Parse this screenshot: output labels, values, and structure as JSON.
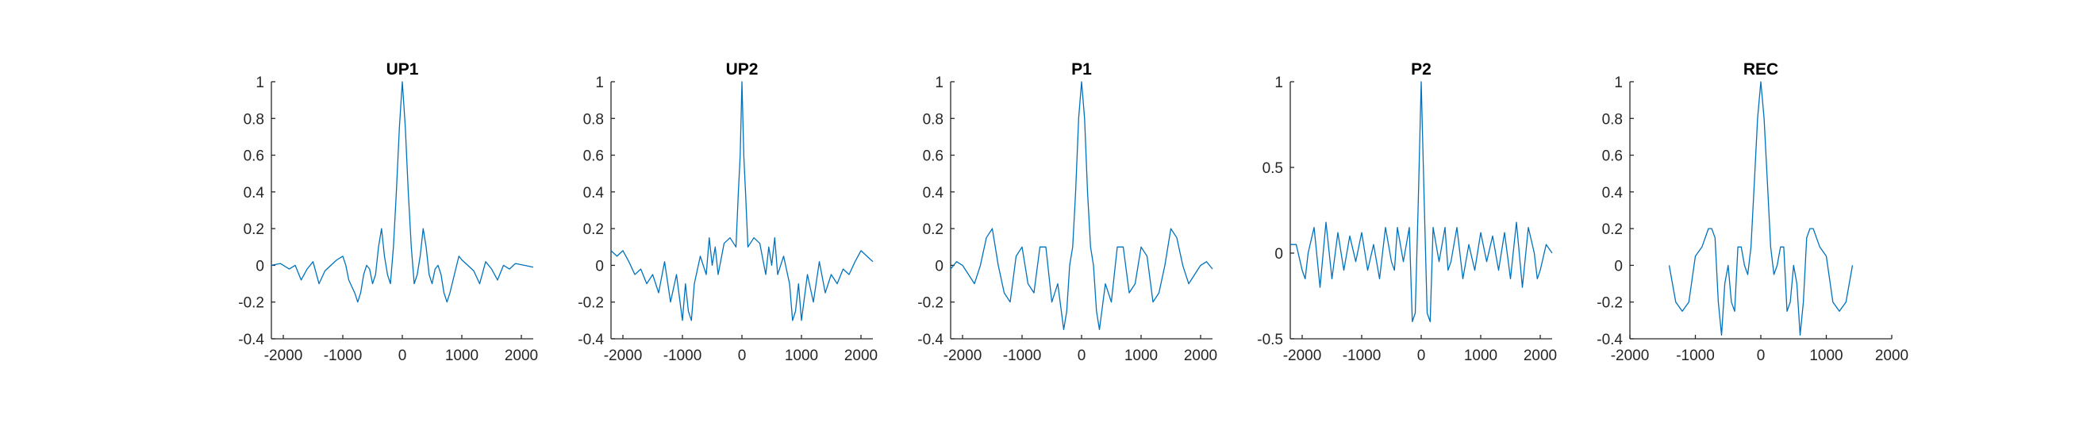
{
  "colors": {
    "series": "#0072BD",
    "axis": "#262626",
    "background": "#ffffff"
  },
  "chart_data": [
    {
      "type": "line",
      "title": "UP1",
      "xlim": [
        -2200,
        2200
      ],
      "ylim": [
        -0.4,
        1
      ],
      "xticks": [
        -2000,
        -1000,
        0,
        1000,
        2000
      ],
      "yticks": [
        -0.4,
        -0.2,
        0,
        0.2,
        0.4,
        0.6,
        0.8,
        1
      ],
      "xticklabels": [
        "-2000",
        "-1000",
        "0",
        "1000",
        "2000"
      ],
      "yticklabels": [
        "-0.4",
        "-0.2",
        "0",
        "0.2",
        "0.4",
        "0.6",
        "0.8",
        "1"
      ],
      "grid": false,
      "series": [
        {
          "x": [
            -2200,
            -2050,
            -1900,
            -1800,
            -1700,
            -1600,
            -1500,
            -1400,
            -1300,
            -1200,
            -1100,
            -1000,
            -950,
            -900,
            -800,
            -750,
            -700,
            -650,
            -600,
            -550,
            -500,
            -450,
            -400,
            -350,
            -300,
            -250,
            -200,
            -150,
            -100,
            -50,
            0,
            50,
            100,
            150,
            200,
            250,
            300,
            350,
            400,
            450,
            500,
            550,
            600,
            650,
            700,
            750,
            800,
            950,
            1000,
            1100,
            1200,
            1300,
            1400,
            1500,
            1600,
            1700,
            1800,
            1900,
            2050,
            2200
          ],
          "y": [
            0.0,
            0.01,
            -0.02,
            0.0,
            -0.08,
            -0.02,
            0.02,
            -0.1,
            -0.03,
            0.0,
            0.03,
            0.05,
            0.0,
            -0.08,
            -0.15,
            -0.2,
            -0.15,
            -0.05,
            0.0,
            -0.02,
            -0.1,
            -0.05,
            0.1,
            0.2,
            0.05,
            -0.05,
            -0.1,
            0.1,
            0.4,
            0.75,
            1.0,
            0.75,
            0.4,
            0.1,
            -0.1,
            -0.05,
            0.05,
            0.2,
            0.1,
            -0.05,
            -0.1,
            -0.02,
            0.0,
            -0.05,
            -0.15,
            -0.2,
            -0.15,
            0.05,
            0.03,
            0.0,
            -0.03,
            -0.1,
            0.02,
            -0.02,
            -0.08,
            0.0,
            -0.02,
            0.01,
            0.0,
            -0.01
          ]
        }
      ]
    },
    {
      "type": "line",
      "title": "UP2",
      "xlim": [
        -2200,
        2200
      ],
      "ylim": [
        -0.4,
        1
      ],
      "xticks": [
        -2000,
        -1000,
        0,
        1000,
        2000
      ],
      "yticks": [
        -0.4,
        -0.2,
        0,
        0.2,
        0.4,
        0.6,
        0.8,
        1
      ],
      "xticklabels": [
        "-2000",
        "-1000",
        "0",
        "1000",
        "2000"
      ],
      "yticklabels": [
        "-0.4",
        "-0.2",
        "0",
        "0.2",
        "0.4",
        "0.6",
        "0.8",
        "1"
      ],
      "grid": false,
      "series": [
        {
          "x": [
            -2200,
            -2100,
            -2000,
            -1900,
            -1800,
            -1700,
            -1600,
            -1500,
            -1400,
            -1300,
            -1200,
            -1100,
            -1000,
            -950,
            -900,
            -850,
            -800,
            -700,
            -600,
            -550,
            -500,
            -450,
            -400,
            -300,
            -200,
            -100,
            -60,
            -30,
            0,
            30,
            60,
            100,
            200,
            300,
            400,
            450,
            500,
            550,
            600,
            700,
            800,
            850,
            900,
            950,
            1000,
            1100,
            1200,
            1300,
            1400,
            1500,
            1600,
            1700,
            1800,
            1900,
            2000,
            2100,
            2200
          ],
          "y": [
            0.08,
            0.05,
            0.08,
            0.02,
            -0.05,
            -0.02,
            -0.1,
            -0.05,
            -0.15,
            0.02,
            -0.2,
            -0.05,
            -0.3,
            -0.1,
            -0.25,
            -0.3,
            -0.1,
            0.05,
            -0.05,
            0.15,
            0.0,
            0.1,
            -0.05,
            0.12,
            0.15,
            0.1,
            0.4,
            0.6,
            1.0,
            0.6,
            0.4,
            0.1,
            0.15,
            0.12,
            -0.05,
            0.1,
            0.0,
            0.15,
            -0.05,
            0.05,
            -0.1,
            -0.3,
            -0.25,
            -0.1,
            -0.3,
            -0.05,
            -0.2,
            0.02,
            -0.15,
            -0.05,
            -0.1,
            -0.02,
            -0.05,
            0.02,
            0.08,
            0.05,
            0.02
          ]
        }
      ]
    },
    {
      "type": "line",
      "title": "P1",
      "xlim": [
        -2200,
        2200
      ],
      "ylim": [
        -0.4,
        1
      ],
      "xticks": [
        -2000,
        -1000,
        0,
        1000,
        2000
      ],
      "yticks": [
        -0.4,
        -0.2,
        0,
        0.2,
        0.4,
        0.6,
        0.8,
        1
      ],
      "xticklabels": [
        "-2000",
        "-1000",
        "0",
        "1000",
        "2000"
      ],
      "yticklabels": [
        "-0.4",
        "-0.2",
        "0",
        "0.2",
        "0.4",
        "0.6",
        "0.8",
        "1"
      ],
      "grid": false,
      "series": [
        {
          "x": [
            -2200,
            -2100,
            -2000,
            -1900,
            -1800,
            -1700,
            -1600,
            -1500,
            -1400,
            -1300,
            -1200,
            -1100,
            -1000,
            -900,
            -800,
            -700,
            -600,
            -500,
            -400,
            -300,
            -250,
            -200,
            -150,
            -100,
            -50,
            0,
            50,
            100,
            150,
            200,
            250,
            300,
            400,
            500,
            600,
            700,
            800,
            900,
            1000,
            1100,
            1200,
            1300,
            1400,
            1500,
            1600,
            1700,
            1800,
            1900,
            2000,
            2100,
            2200
          ],
          "y": [
            -0.02,
            0.02,
            0.0,
            -0.05,
            -0.1,
            0.0,
            0.15,
            0.2,
            0.0,
            -0.15,
            -0.2,
            0.05,
            0.1,
            -0.1,
            -0.15,
            0.1,
            0.1,
            -0.2,
            -0.1,
            -0.35,
            -0.25,
            0.0,
            0.1,
            0.4,
            0.8,
            1.0,
            0.8,
            0.4,
            0.1,
            0.0,
            -0.25,
            -0.35,
            -0.1,
            -0.2,
            0.1,
            0.1,
            -0.15,
            -0.1,
            0.1,
            0.05,
            -0.2,
            -0.15,
            0.0,
            0.2,
            0.15,
            0.0,
            -0.1,
            -0.05,
            0.0,
            0.02,
            -0.02
          ]
        }
      ]
    },
    {
      "type": "line",
      "title": "P2",
      "xlim": [
        -2200,
        2200
      ],
      "ylim": [
        -0.5,
        1
      ],
      "xticks": [
        -2000,
        -1000,
        0,
        1000,
        2000
      ],
      "yticks": [
        -0.5,
        0,
        0.5,
        1
      ],
      "xticklabels": [
        "-2000",
        "-1000",
        "0",
        "1000",
        "2000"
      ],
      "yticklabels": [
        "-0.5",
        "0",
        "0.5",
        "1"
      ],
      "grid": false,
      "series": [
        {
          "x": [
            -2200,
            -2100,
            -2000,
            -1950,
            -1900,
            -1800,
            -1700,
            -1600,
            -1500,
            -1400,
            -1300,
            -1200,
            -1100,
            -1000,
            -900,
            -800,
            -700,
            -600,
            -500,
            -450,
            -400,
            -300,
            -200,
            -150,
            -100,
            -50,
            0,
            50,
            100,
            150,
            200,
            300,
            400,
            450,
            500,
            600,
            700,
            800,
            900,
            1000,
            1100,
            1200,
            1300,
            1400,
            1500,
            1600,
            1700,
            1800,
            1900,
            1950,
            2000,
            2100,
            2200
          ],
          "y": [
            0.05,
            0.05,
            -0.1,
            -0.15,
            0.0,
            0.15,
            -0.2,
            0.18,
            -0.15,
            0.12,
            -0.1,
            0.1,
            -0.05,
            0.12,
            -0.1,
            0.05,
            -0.15,
            0.15,
            -0.05,
            -0.1,
            0.15,
            -0.05,
            0.15,
            -0.4,
            -0.35,
            0.3,
            1.0,
            0.3,
            -0.35,
            -0.4,
            0.15,
            -0.05,
            0.15,
            -0.1,
            -0.05,
            0.15,
            -0.15,
            0.05,
            -0.1,
            0.12,
            -0.05,
            0.1,
            -0.1,
            0.12,
            -0.15,
            0.18,
            -0.2,
            0.15,
            0.0,
            -0.15,
            -0.1,
            0.05,
            0.0
          ]
        }
      ]
    },
    {
      "type": "line",
      "title": "REC",
      "xlim": [
        -2000,
        2000
      ],
      "ylim": [
        -0.4,
        1
      ],
      "xticks": [
        -2000,
        -1000,
        0,
        1000,
        2000
      ],
      "yticks": [
        -0.4,
        -0.2,
        0,
        0.2,
        0.4,
        0.6,
        0.8,
        1
      ],
      "xticklabels": [
        "-2000",
        "-1000",
        "0",
        "1000",
        "2000"
      ],
      "yticklabels": [
        "-0.4",
        "-0.2",
        "0",
        "0.2",
        "0.4",
        "0.6",
        "0.8",
        "1"
      ],
      "grid": false,
      "series": [
        {
          "x": [
            -1400,
            -1300,
            -1200,
            -1100,
            -1000,
            -900,
            -800,
            -750,
            -700,
            -650,
            -600,
            -550,
            -500,
            -450,
            -400,
            -350,
            -300,
            -250,
            -200,
            -150,
            -100,
            -50,
            0,
            50,
            100,
            150,
            200,
            250,
            300,
            350,
            400,
            450,
            500,
            550,
            600,
            650,
            700,
            750,
            800,
            900,
            1000,
            1100,
            1200,
            1300,
            1400
          ],
          "y": [
            0.0,
            -0.2,
            -0.25,
            -0.2,
            0.05,
            0.1,
            0.2,
            0.2,
            0.15,
            -0.2,
            -0.38,
            -0.1,
            0.0,
            -0.2,
            -0.25,
            0.1,
            0.1,
            0.0,
            -0.05,
            0.1,
            0.45,
            0.8,
            1.0,
            0.8,
            0.45,
            0.1,
            -0.05,
            0.0,
            0.1,
            0.1,
            -0.25,
            -0.2,
            0.0,
            -0.1,
            -0.38,
            -0.2,
            0.15,
            0.2,
            0.2,
            0.1,
            0.05,
            -0.2,
            -0.25,
            -0.2,
            0.0
          ]
        }
      ]
    }
  ]
}
